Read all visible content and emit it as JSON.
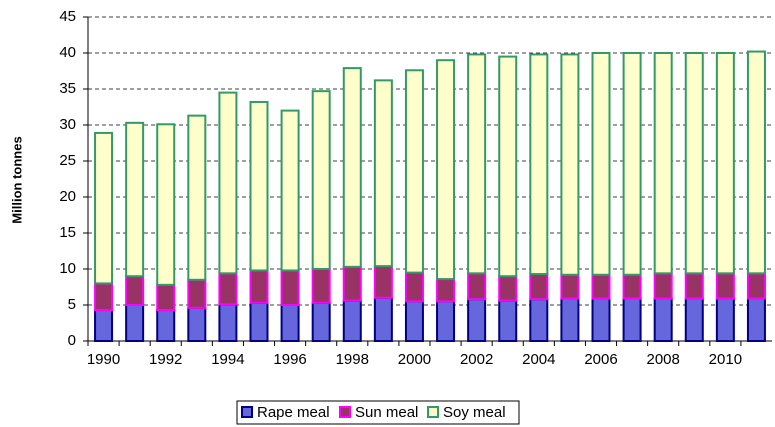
{
  "chart_data": {
    "type": "stacked_bar",
    "y_label": "Million tonnes",
    "categories": [
      "1990",
      null,
      "1992",
      null,
      "1994",
      null,
      "1996",
      null,
      "1998",
      null,
      "2000",
      null,
      "2002",
      null,
      "2004",
      null,
      "2006",
      null,
      "2008",
      null,
      "2010",
      null
    ],
    "series": [
      {
        "name": "Rape meal",
        "color": "#6666dd",
        "edgecolor": "#000080",
        "values": [
          4.3,
          5.0,
          4.3,
          4.6,
          5.1,
          5.3,
          5.0,
          5.3,
          5.6,
          6.0,
          5.5,
          5.5,
          5.8,
          5.6,
          5.8,
          5.9,
          5.9,
          5.9,
          5.9,
          5.9,
          5.9,
          5.9
        ]
      },
      {
        "name": "Sun meal",
        "color": "#993366",
        "edgecolor": "#ff00ff",
        "values": [
          3.7,
          4.0,
          3.5,
          3.9,
          4.3,
          4.5,
          4.8,
          4.7,
          4.7,
          4.4,
          4.0,
          3.1,
          3.6,
          3.4,
          3.5,
          3.3,
          3.3,
          3.3,
          3.5,
          3.5,
          3.5,
          3.5
        ]
      },
      {
        "name": "Soy meal",
        "color": "#ffffcc",
        "edgecolor": "#339966",
        "values": [
          20.9,
          21.3,
          22.3,
          22.8,
          25.1,
          23.4,
          22.2,
          24.7,
          27.6,
          25.8,
          28.1,
          30.4,
          30.4,
          30.5,
          30.5,
          30.6,
          30.8,
          30.8,
          30.6,
          30.6,
          30.6,
          30.8
        ]
      }
    ],
    "ylim": [
      0,
      45
    ],
    "yticks": [
      0,
      5,
      10,
      15,
      20,
      25,
      30,
      35,
      40,
      45
    ],
    "grid": true,
    "legend": "bottom"
  }
}
